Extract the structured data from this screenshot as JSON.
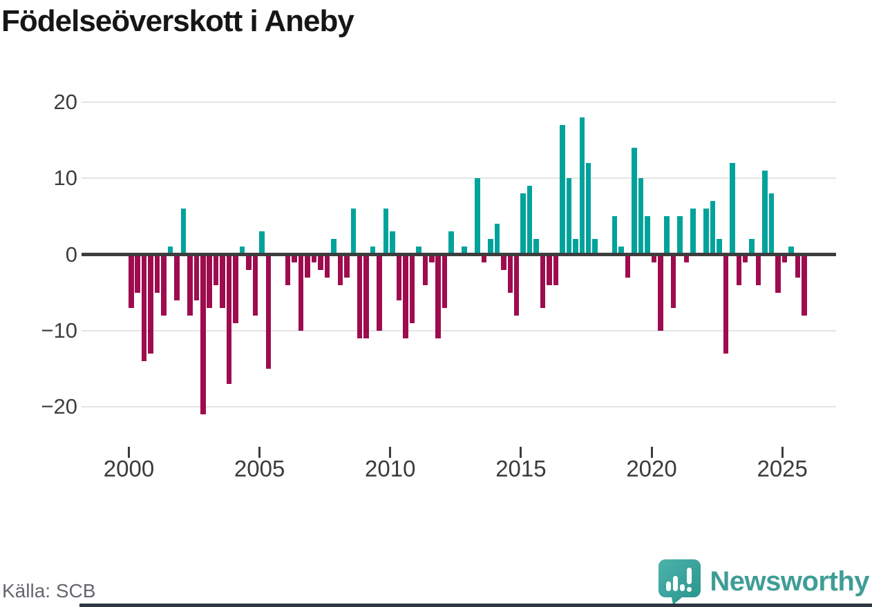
{
  "title": "Födelseöverskott i Aneby",
  "source": "Källa: SCB",
  "brand": {
    "name": "Newsworthy",
    "icon": "newsworthy-speech-bubble-chart-icon"
  },
  "colors": {
    "positive_bar": "#00a39b",
    "negative_bar": "#9e0c4e",
    "gridline": "#e4e4e4",
    "zero_line": "#3d3d3d",
    "axis_text": "#3b3b3b",
    "title_text": "#161616",
    "source_text": "#66666e",
    "brand_teal": "#3f9d96",
    "bottom_strip": "#2d3844"
  },
  "chart_data": {
    "type": "bar",
    "title": "Födelseöverskott i Aneby",
    "frequency": "quarterly",
    "x_start": "2000-Q1",
    "x_end": "2025-Q4",
    "grid": "horizontal",
    "legend": "none",
    "ylim": [
      -22,
      20
    ],
    "y_ticks": [
      20,
      10,
      0,
      -10,
      -20
    ],
    "y_tick_labels": [
      "20",
      "10",
      "0",
      "−10",
      "−20"
    ],
    "x_tick_labels": [
      "2000",
      "2005",
      "2010",
      "2015",
      "2020",
      "2025"
    ],
    "years": [
      {
        "year": 2000,
        "quarters": [
          -7,
          -5,
          -14,
          -13
        ]
      },
      {
        "year": 2001,
        "quarters": [
          -5,
          -8,
          1,
          -6
        ]
      },
      {
        "year": 2002,
        "quarters": [
          6,
          -8,
          -6,
          -21
        ]
      },
      {
        "year": 2003,
        "quarters": [
          -7,
          -4,
          -7,
          -17
        ]
      },
      {
        "year": 2004,
        "quarters": [
          -9,
          1,
          -2,
          -8
        ]
      },
      {
        "year": 2005,
        "quarters": [
          3,
          -15,
          0,
          0
        ]
      },
      {
        "year": 2006,
        "quarters": [
          -4,
          -1,
          -10,
          -3
        ]
      },
      {
        "year": 2007,
        "quarters": [
          -1,
          -2,
          -3,
          2
        ]
      },
      {
        "year": 2008,
        "quarters": [
          -4,
          -3,
          6,
          -11
        ]
      },
      {
        "year": 2009,
        "quarters": [
          -11,
          1,
          -10,
          6
        ]
      },
      {
        "year": 2010,
        "quarters": [
          3,
          -6,
          -11,
          -9
        ]
      },
      {
        "year": 2011,
        "quarters": [
          1,
          -4,
          -1,
          -11
        ]
      },
      {
        "year": 2012,
        "quarters": [
          -7,
          3,
          0,
          1
        ]
      },
      {
        "year": 2013,
        "quarters": [
          0,
          10,
          -1,
          2
        ]
      },
      {
        "year": 2014,
        "quarters": [
          4,
          -2,
          -5,
          -8
        ]
      },
      {
        "year": 2015,
        "quarters": [
          8,
          9,
          2,
          -7
        ]
      },
      {
        "year": 2016,
        "quarters": [
          -4,
          -4,
          17,
          10
        ]
      },
      {
        "year": 2017,
        "quarters": [
          2,
          18,
          12,
          2
        ]
      },
      {
        "year": 2018,
        "quarters": [
          0,
          0,
          5,
          1
        ]
      },
      {
        "year": 2019,
        "quarters": [
          -3,
          14,
          10,
          5
        ]
      },
      {
        "year": 2020,
        "quarters": [
          -1,
          -10,
          5,
          -7
        ]
      },
      {
        "year": 2021,
        "quarters": [
          5,
          -1,
          6,
          0
        ]
      },
      {
        "year": 2022,
        "quarters": [
          6,
          7,
          2,
          -13
        ]
      },
      {
        "year": 2023,
        "quarters": [
          12,
          -4,
          -1,
          2
        ]
      },
      {
        "year": 2024,
        "quarters": [
          -4,
          11,
          8,
          -5
        ]
      },
      {
        "year": 2025,
        "quarters": [
          -1,
          1,
          -3,
          -8
        ]
      }
    ]
  }
}
